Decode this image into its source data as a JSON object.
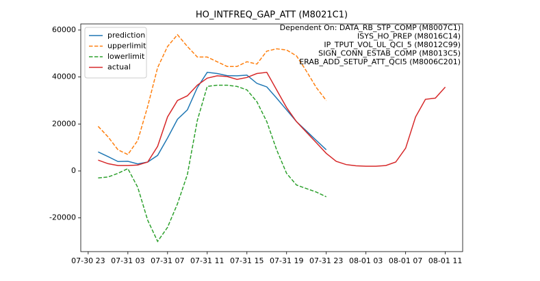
{
  "chart_data": {
    "type": "line",
    "title": "HO_INTFREQ_GAP_ATT (M8021C1)",
    "annotation": [
      "Dependent On: DATA_RB_STP_COMP (M8007C1)",
      "ISYS_HO_PREP (M8016C14)",
      "IP_TPUT_VOL_UL_QCI_5 (M8012C99)",
      "SIGN_CONN_ESTAB_COMP (M8013C5)",
      "ERAB_ADD_SETUP_ATT_QCI5 (M8006C201)"
    ],
    "legend": "upper left",
    "x": [
      "07-31 00",
      "07-31 01",
      "07-31 02",
      "07-31 03",
      "07-31 04",
      "07-31 05",
      "07-31 06",
      "07-31 07",
      "07-31 08",
      "07-31 09",
      "07-31 10",
      "07-31 11",
      "07-31 12",
      "07-31 13",
      "07-31 14",
      "07-31 15",
      "07-31 16",
      "07-31 17",
      "07-31 18",
      "07-31 19",
      "07-31 20",
      "07-31 21",
      "07-31 22",
      "07-31 23",
      "08-01 00",
      "08-01 01",
      "08-01 02",
      "08-01 03",
      "08-01 04",
      "08-01 05",
      "08-01 06",
      "08-01 07",
      "08-01 08",
      "08-01 09",
      "08-01 10",
      "08-01 11"
    ],
    "series": [
      {
        "name": "prediction",
        "color": "#1f77b4",
        "linestyle": "solid",
        "values": [
          8100,
          6100,
          4000,
          4100,
          3000,
          3800,
          6600,
          14000,
          22000,
          26000,
          35500,
          42000,
          41500,
          40600,
          40500,
          40800,
          37300,
          35800,
          31000,
          26000,
          21000,
          17000,
          13000,
          9000,
          null,
          null,
          null,
          null,
          null,
          null,
          null,
          null,
          null,
          null,
          null,
          null
        ]
      },
      {
        "name": "upperlimit",
        "color": "#ff7f0e",
        "linestyle": "dashed",
        "values": [
          19000,
          14500,
          9000,
          7000,
          13000,
          27500,
          44000,
          53000,
          58000,
          53000,
          48500,
          48500,
          46500,
          44500,
          44500,
          46500,
          45500,
          51000,
          52000,
          51500,
          49000,
          42500,
          35500,
          30000,
          null,
          null,
          null,
          null,
          null,
          null,
          null,
          null,
          null,
          null,
          null,
          null
        ]
      },
      {
        "name": "lowerlimit",
        "color": "#2ca02c",
        "linestyle": "dashed",
        "values": [
          -3000,
          -2600,
          -1000,
          1000,
          -7000,
          -21000,
          -30000,
          -24000,
          -14000,
          -1500,
          21500,
          36000,
          36500,
          36500,
          36000,
          34500,
          29500,
          21000,
          9000,
          -1000,
          -6000,
          -7500,
          -9000,
          -11000,
          null,
          null,
          null,
          null,
          null,
          null,
          null,
          null,
          null,
          null,
          null,
          null
        ]
      },
      {
        "name": "actual",
        "color": "#d62728",
        "linestyle": "solid",
        "values": [
          4600,
          3100,
          2300,
          2300,
          2500,
          3800,
          10500,
          23000,
          30000,
          32000,
          36500,
          39500,
          40500,
          40200,
          39000,
          39800,
          41500,
          42000,
          34500,
          27000,
          21000,
          16500,
          12000,
          7500,
          4100,
          2700,
          2200,
          2000,
          2000,
          2300,
          3800,
          9700,
          23000,
          30500,
          31000,
          35700
        ]
      }
    ],
    "xlim": [
      "07-30 22:15",
      "08-01 12:45"
    ],
    "xticks": [
      "07-30 23",
      "07-31 03",
      "07-31 07",
      "07-31 11",
      "07-31 15",
      "07-31 19",
      "07-31 23",
      "08-01 03",
      "08-01 07",
      "08-01 11"
    ],
    "ylim": [
      -34350,
      62600
    ],
    "yticks": [
      -20000,
      0,
      20000,
      40000,
      60000
    ]
  }
}
